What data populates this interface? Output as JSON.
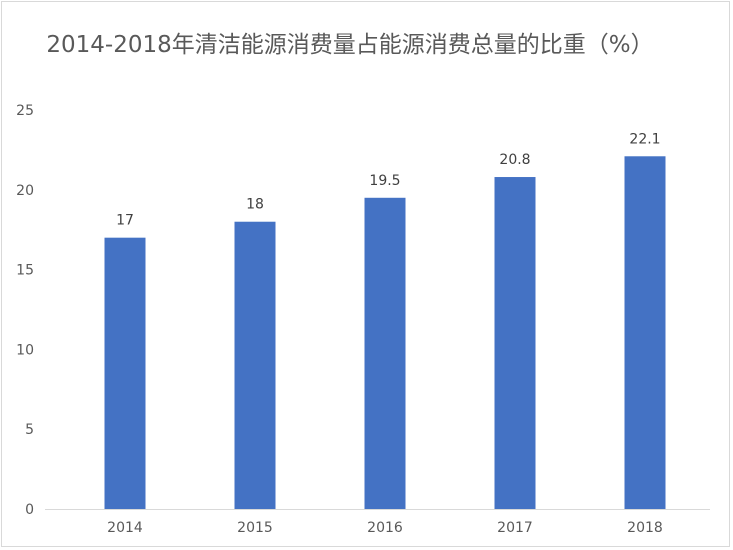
{
  "chart_data": {
    "type": "bar",
    "title": "2014-2018年清洁能源消费量占能源消费总量的比重（%）",
    "categories": [
      "2014",
      "2015",
      "2016",
      "2017",
      "2018"
    ],
    "values": [
      17,
      18,
      19.5,
      20.8,
      22.1
    ],
    "data_labels": [
      "17",
      "18",
      "19.5",
      "20.8",
      "22.1"
    ],
    "y_ticks": [
      "0",
      "5",
      "10",
      "15",
      "20",
      "25"
    ],
    "ylim": [
      0,
      25
    ],
    "xlabel": "",
    "ylabel": "",
    "grid": false,
    "legend": "none",
    "bar_color": "#4472c4",
    "axis_color": "#d9d9d9"
  }
}
